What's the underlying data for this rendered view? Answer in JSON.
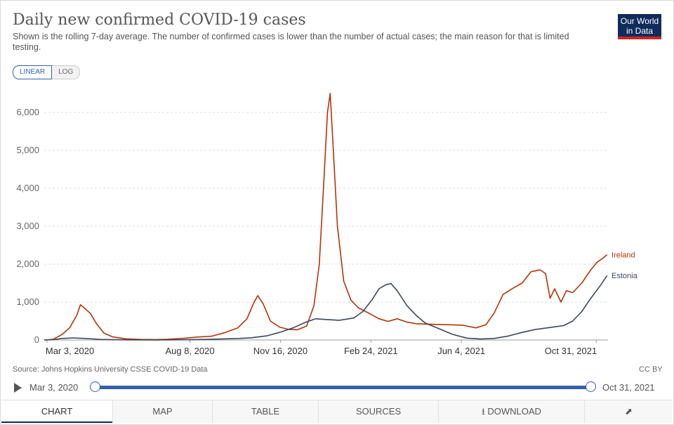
{
  "header": {
    "title": "Daily new confirmed COVID-19 cases",
    "subtitle": "Shown is the rolling 7-day average. The number of confirmed cases is lower than the number of actual cases; the main reason for that is limited testing.",
    "logo_line1": "Our World",
    "logo_line2": "in Data"
  },
  "scale_toggle": {
    "linear": "LINEAR",
    "log": "LOG",
    "selected": "LINEAR"
  },
  "chart_data": {
    "type": "line",
    "title": "Daily new confirmed COVID-19 cases",
    "ylim": [
      0,
      6000
    ],
    "yticks": [
      0,
      1000,
      2000,
      3000,
      4000,
      5000,
      6000
    ],
    "ytick_labels": [
      "0",
      "1,000",
      "2,000",
      "3,000",
      "4,000",
      "5,000",
      "6,000"
    ],
    "xlim": [
      "2020-02-29",
      "2021-11-13"
    ],
    "xticks": [
      "2020-03-03",
      "2020-08-08",
      "2020-11-16",
      "2021-02-24",
      "2021-06-04",
      "2021-10-31"
    ],
    "xtick_labels": [
      "Mar 3, 2020",
      "Aug 8, 2020",
      "Nov 16, 2020",
      "Feb 24, 2021",
      "Jun 4, 2021",
      "Oct 31, 2021"
    ],
    "grid": true,
    "legend": "inline-right",
    "series": [
      {
        "name": "Ireland",
        "color": "#b13507",
        "points": [
          [
            "2020-02-29",
            0
          ],
          [
            "2020-03-10",
            20
          ],
          [
            "2020-03-20",
            150
          ],
          [
            "2020-03-28",
            320
          ],
          [
            "2020-04-05",
            650
          ],
          [
            "2020-04-09",
            930
          ],
          [
            "2020-04-13",
            850
          ],
          [
            "2020-04-20",
            700
          ],
          [
            "2020-04-27",
            420
          ],
          [
            "2020-05-05",
            180
          ],
          [
            "2020-05-15",
            80
          ],
          [
            "2020-05-30",
            30
          ],
          [
            "2020-06-15",
            15
          ],
          [
            "2020-07-01",
            12
          ],
          [
            "2020-07-15",
            20
          ],
          [
            "2020-08-01",
            45
          ],
          [
            "2020-08-15",
            75
          ],
          [
            "2020-09-01",
            100
          ],
          [
            "2020-09-15",
            190
          ],
          [
            "2020-09-30",
            320
          ],
          [
            "2020-10-10",
            560
          ],
          [
            "2020-10-18",
            1000
          ],
          [
            "2020-10-22",
            1170
          ],
          [
            "2020-10-28",
            950
          ],
          [
            "2020-11-05",
            500
          ],
          [
            "2020-11-15",
            340
          ],
          [
            "2020-11-25",
            280
          ],
          [
            "2020-12-05",
            270
          ],
          [
            "2020-12-15",
            370
          ],
          [
            "2020-12-23",
            900
          ],
          [
            "2020-12-29",
            2000
          ],
          [
            "2021-01-03",
            4200
          ],
          [
            "2021-01-07",
            6000
          ],
          [
            "2021-01-10",
            6500
          ],
          [
            "2021-01-13",
            5200
          ],
          [
            "2021-01-18",
            3000
          ],
          [
            "2021-01-25",
            1550
          ],
          [
            "2021-02-02",
            1050
          ],
          [
            "2021-02-10",
            850
          ],
          [
            "2021-02-20",
            730
          ],
          [
            "2021-03-05",
            560
          ],
          [
            "2021-03-15",
            490
          ],
          [
            "2021-03-25",
            560
          ],
          [
            "2021-04-05",
            470
          ],
          [
            "2021-04-15",
            430
          ],
          [
            "2021-04-25",
            420
          ],
          [
            "2021-05-10",
            410
          ],
          [
            "2021-05-25",
            400
          ],
          [
            "2021-06-05",
            390
          ],
          [
            "2021-06-20",
            320
          ],
          [
            "2021-07-01",
            400
          ],
          [
            "2021-07-10",
            700
          ],
          [
            "2021-07-20",
            1200
          ],
          [
            "2021-07-30",
            1350
          ],
          [
            "2021-08-10",
            1500
          ],
          [
            "2021-08-20",
            1800
          ],
          [
            "2021-08-30",
            1850
          ],
          [
            "2021-09-05",
            1750
          ],
          [
            "2021-09-10",
            1100
          ],
          [
            "2021-09-15",
            1350
          ],
          [
            "2021-09-22",
            1000
          ],
          [
            "2021-09-28",
            1300
          ],
          [
            "2021-10-05",
            1250
          ],
          [
            "2021-10-15",
            1500
          ],
          [
            "2021-10-25",
            1850
          ],
          [
            "2021-11-01",
            2050
          ],
          [
            "2021-11-07",
            2150
          ],
          [
            "2021-11-12",
            2250
          ]
        ]
      },
      {
        "name": "Estonia",
        "color": "#3b475f",
        "points": [
          [
            "2020-02-29",
            0
          ],
          [
            "2020-03-10",
            10
          ],
          [
            "2020-03-20",
            40
          ],
          [
            "2020-04-01",
            55
          ],
          [
            "2020-04-15",
            40
          ],
          [
            "2020-05-01",
            15
          ],
          [
            "2020-06-01",
            3
          ],
          [
            "2020-07-01",
            2
          ],
          [
            "2020-08-01",
            5
          ],
          [
            "2020-09-01",
            20
          ],
          [
            "2020-10-01",
            40
          ],
          [
            "2020-10-15",
            60
          ],
          [
            "2020-11-01",
            110
          ],
          [
            "2020-11-15",
            200
          ],
          [
            "2020-12-01",
            330
          ],
          [
            "2020-12-15",
            480
          ],
          [
            "2020-12-25",
            560
          ],
          [
            "2021-01-05",
            540
          ],
          [
            "2021-01-20",
            520
          ],
          [
            "2021-02-05",
            580
          ],
          [
            "2021-02-15",
            750
          ],
          [
            "2021-02-25",
            1050
          ],
          [
            "2021-03-05",
            1350
          ],
          [
            "2021-03-12",
            1450
          ],
          [
            "2021-03-18",
            1490
          ],
          [
            "2021-03-25",
            1300
          ],
          [
            "2021-04-05",
            900
          ],
          [
            "2021-04-15",
            650
          ],
          [
            "2021-04-25",
            450
          ],
          [
            "2021-05-10",
            300
          ],
          [
            "2021-05-25",
            150
          ],
          [
            "2021-06-10",
            50
          ],
          [
            "2021-06-25",
            25
          ],
          [
            "2021-07-10",
            40
          ],
          [
            "2021-07-25",
            100
          ],
          [
            "2021-08-10",
            200
          ],
          [
            "2021-08-25",
            280
          ],
          [
            "2021-09-10",
            330
          ],
          [
            "2021-09-25",
            380
          ],
          [
            "2021-10-05",
            500
          ],
          [
            "2021-10-15",
            750
          ],
          [
            "2021-10-25",
            1100
          ],
          [
            "2021-11-05",
            1450
          ],
          [
            "2021-11-12",
            1700
          ]
        ]
      }
    ]
  },
  "footer": {
    "source": "Source: Johns Hopkins University CSSE COVID-19 Data",
    "license": "CC BY"
  },
  "timeline": {
    "start_label": "Mar 3, 2020",
    "end_label": "Oct 31, 2021"
  },
  "tabs": [
    {
      "label": "CHART"
    },
    {
      "label": "MAP"
    },
    {
      "label": "TABLE"
    },
    {
      "label": "SOURCES"
    },
    {
      "label": "DOWNLOAD"
    }
  ]
}
